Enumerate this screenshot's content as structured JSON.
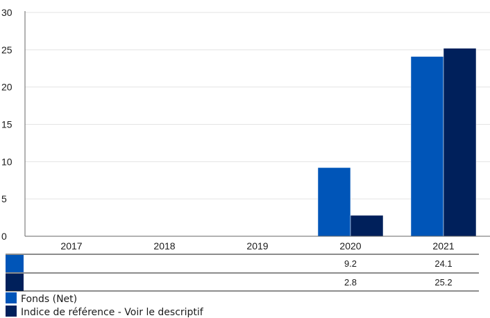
{
  "chart_data": {
    "type": "bar",
    "categories": [
      "2017",
      "2018",
      "2019",
      "2020",
      "2021"
    ],
    "series": [
      {
        "name": "Fonds (Net)",
        "color": "#0055b8",
        "values": [
          null,
          null,
          null,
          9.2,
          24.1
        ]
      },
      {
        "name": "Indice de référence - Voir le descriptif",
        "color": "#00205b",
        "values": [
          null,
          null,
          null,
          2.8,
          25.2
        ]
      }
    ],
    "ylim": [
      0,
      30
    ],
    "yticks": [
      0,
      5,
      10,
      15,
      20,
      25,
      30
    ],
    "grid": true,
    "legend_position": "bottom-left",
    "data_table": [
      {
        "series": "Fonds (Net)",
        "cells": [
          "",
          "",
          "",
          "9.2",
          "24.1"
        ]
      },
      {
        "series": "Indice de référence - Voir le descriptif",
        "cells": [
          "",
          "",
          "",
          "2.8",
          "25.2"
        ]
      }
    ]
  }
}
